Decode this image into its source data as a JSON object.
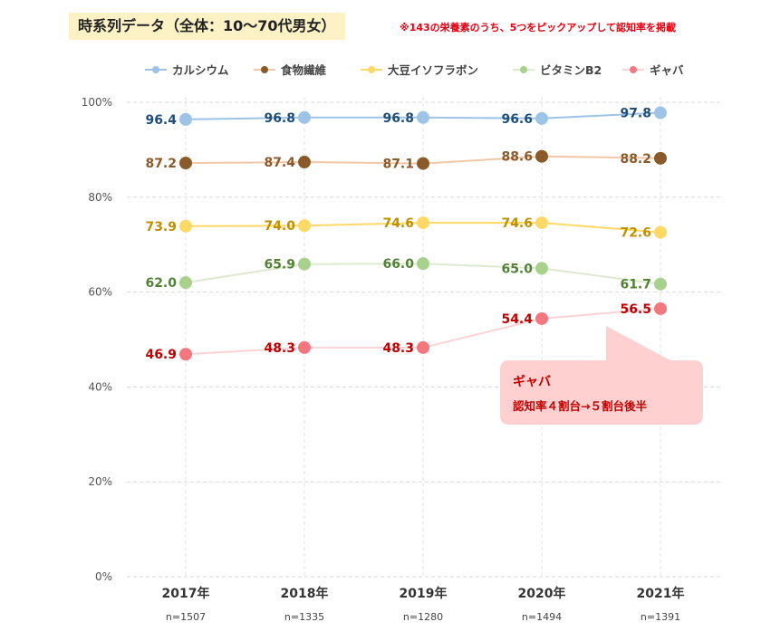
{
  "header": {
    "title": "時系列データ（全体：10〜70代男女）",
    "note": "※143の栄養素のうち、5つをピックアップして認知率を掲載"
  },
  "chart_data": {
    "type": "line",
    "categories": [
      "2017年",
      "2018年",
      "2019年",
      "2020年",
      "2021年"
    ],
    "sample_sizes": [
      "n=1507",
      "n=1335",
      "n=1280",
      "n=1494",
      "n=1391"
    ],
    "yticks": [
      "0%",
      "20%",
      "40%",
      "60%",
      "80%",
      "100%"
    ],
    "ylim": [
      0,
      100
    ],
    "grid": true,
    "legend_position": "top",
    "series": [
      {
        "name": "カルシウム",
        "values": [
          96.4,
          96.8,
          96.8,
          96.6,
          97.8
        ],
        "labels": [
          "96.4",
          "96.8",
          "96.8",
          "96.6",
          "97.8"
        ],
        "color": "#9dc3e6",
        "label_color": "#1f4e79"
      },
      {
        "name": "食物繊維",
        "values": [
          87.2,
          87.4,
          87.1,
          88.6,
          88.2
        ],
        "labels": [
          "87.2",
          "87.4",
          "87.1",
          "88.6",
          "88.2"
        ],
        "color": "#8b5a2b",
        "line_color": "#f0c8a8",
        "label_color": "#8b5a2b"
      },
      {
        "name": "大豆イソフラボン",
        "values": [
          73.9,
          74.0,
          74.6,
          74.6,
          72.6
        ],
        "labels": [
          "73.9",
          "74.0",
          "74.6",
          "74.6",
          "72.6"
        ],
        "color": "#ffd966",
        "label_color": "#bf9000"
      },
      {
        "name": "ビタミンB2",
        "values": [
          62.0,
          65.9,
          66.0,
          65.0,
          61.7
        ],
        "labels": [
          "62.0",
          "65.9",
          "66.0",
          "65.0",
          "61.7"
        ],
        "color": "#a9d18e",
        "line_color": "#dde9d0",
        "label_color": "#538135"
      },
      {
        "name": "ギャバ",
        "values": [
          46.9,
          48.3,
          48.3,
          54.4,
          56.5
        ],
        "labels": [
          "46.9",
          "48.3",
          "48.3",
          "54.4",
          "56.5"
        ],
        "color": "#f4777f",
        "line_color": "#fbd3d6",
        "label_color": "#c00000"
      }
    ],
    "annotation": {
      "title": "ギャバ",
      "text": "認知率４割台→５割台後半",
      "background": "#ffd0d0"
    }
  }
}
